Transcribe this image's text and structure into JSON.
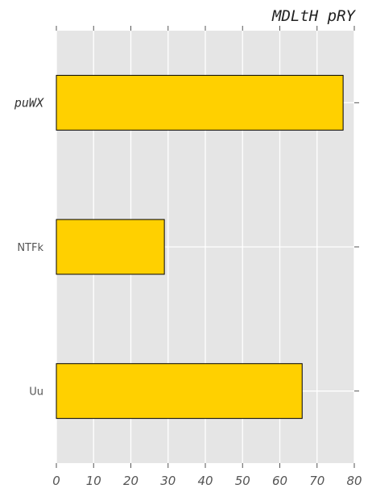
{
  "chart_data": {
    "type": "bar",
    "orientation": "horizontal",
    "title": "MDLtH pRY",
    "categories": [
      "Uu",
      "NTFk",
      "puWX"
    ],
    "values": [
      66,
      29,
      77
    ],
    "xlim": [
      0,
      80
    ],
    "xticks": [
      0,
      10,
      20,
      30,
      40,
      50,
      60,
      70,
      80
    ],
    "xlabel": "",
    "ylabel": "",
    "grid": true,
    "bar_color": "#FFD000",
    "bar_edge_color": "#000000",
    "background_color": "#E5E5E5"
  }
}
